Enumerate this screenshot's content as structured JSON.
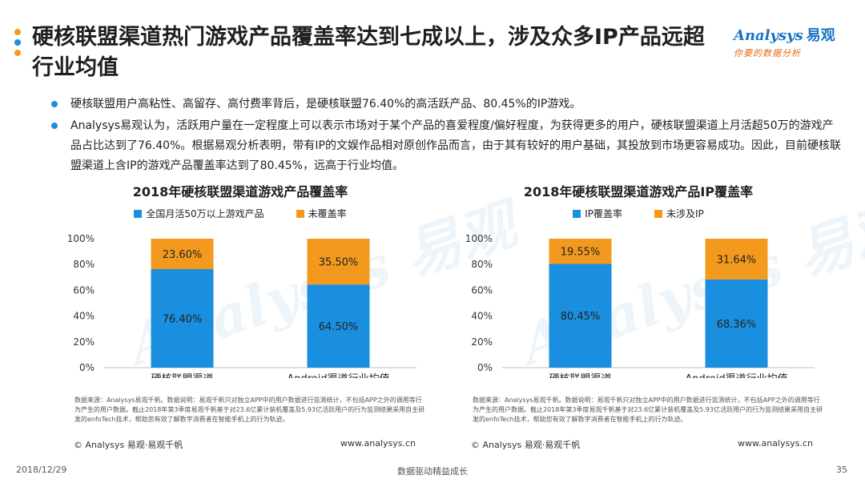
{
  "header": {
    "title": "硬核联盟渠道热门游戏产品覆盖率达到七成以上，涉及众多IP产品远超行业均值",
    "dot_colors": [
      "#f39a1e",
      "#1a8fe0",
      "#f39a1e"
    ]
  },
  "logo": {
    "brand": "Analysys",
    "brand_cn": "易观",
    "tagline": "你要的数据分析",
    "brand_color": "#1a73c7",
    "tagline_color": "#e06a1b"
  },
  "bullets": [
    "硬核联盟用户高粘性、高留存、高付费率背后，是硬核联盟76.40%的高活跃产品、80.45%的IP游戏。",
    "Analysys易观认为，活跃用户量在一定程度上可以表示市场对于某个产品的喜爱程度/偏好程度，为获得更多的用户，硬核联盟渠道上月活超50万的游戏产品占比达到了76.40%。根据易观分析表明，带有IP的文娱作品相对原创作品而言，由于其有较好的用户基础，其投放到市场更容易成功。因此，目前硬核联盟渠道上含IP的游戏产品覆盖率达到了80.45%，远高于行业均值。"
  ],
  "chart_data": [
    {
      "type": "bar",
      "stacked": true,
      "title": "2018年硬核联盟渠道游戏产品覆盖率",
      "categories": [
        "硬核联盟渠道",
        "Android渠道行业均值"
      ],
      "series": [
        {
          "name": "全国月活50万以上游戏产品",
          "values": [
            76.4,
            64.5
          ],
          "color": "#1a8fe0"
        },
        {
          "name": "未覆盖率",
          "values": [
            23.6,
            35.5
          ],
          "color": "#f39a1e"
        }
      ],
      "ylim": [
        0,
        100
      ],
      "yticks": [
        "0%",
        "20%",
        "40%",
        "60%",
        "80%",
        "100%"
      ],
      "legend": "top",
      "note": "数据来源：Analysys易观千帆。数据说明：易观千帆只对独立APP中的用户数据进行监测统计，不包括APP之外的调用等行为产生的用户数据。截止2018年第3季度易观千帆基于对23.6亿累计装机覆盖及5.93亿活跃用户的行为监测结果采用自主研发的enfoTech技术，帮助您有效了解数字消费者在智能手机上的行为轨迹。",
      "copyright": "© Analysys 易观·易观千帆",
      "website": "www.analysys.cn"
    },
    {
      "type": "bar",
      "stacked": true,
      "title": "2018年硬核联盟渠道游戏产品IP覆盖率",
      "categories": [
        "硬核联盟渠道",
        "Android渠道行业均值"
      ],
      "series": [
        {
          "name": "IP覆盖率",
          "values": [
            80.45,
            68.36
          ],
          "color": "#1a8fe0"
        },
        {
          "name": "未涉及IP",
          "values": [
            19.55,
            31.64
          ],
          "color": "#f39a1e"
        }
      ],
      "ylim": [
        0,
        100
      ],
      "yticks": [
        "0%",
        "20%",
        "40%",
        "60%",
        "80%",
        "100%"
      ],
      "legend": "top",
      "note": "数据来源：Analysys易观千帆。数据说明：易观千帆只对独立APP中的用户数据进行监测统计，不包括APP之外的调用等行为产生的用户数据。截止2018年第3季度易观千帆基于对23.6亿累计装机覆盖及5.93亿活跃用户的行为监测结果采用自主研发的enfoTech技术，帮助您有效了解数字消费者在智能手机上的行为轨迹。",
      "copyright": "© Analysys 易观·易观千帆",
      "website": "www.analysys.cn"
    }
  ],
  "footer": {
    "date": "2018/12/29",
    "slogan": "数据驱动精益成长",
    "page": "35"
  }
}
